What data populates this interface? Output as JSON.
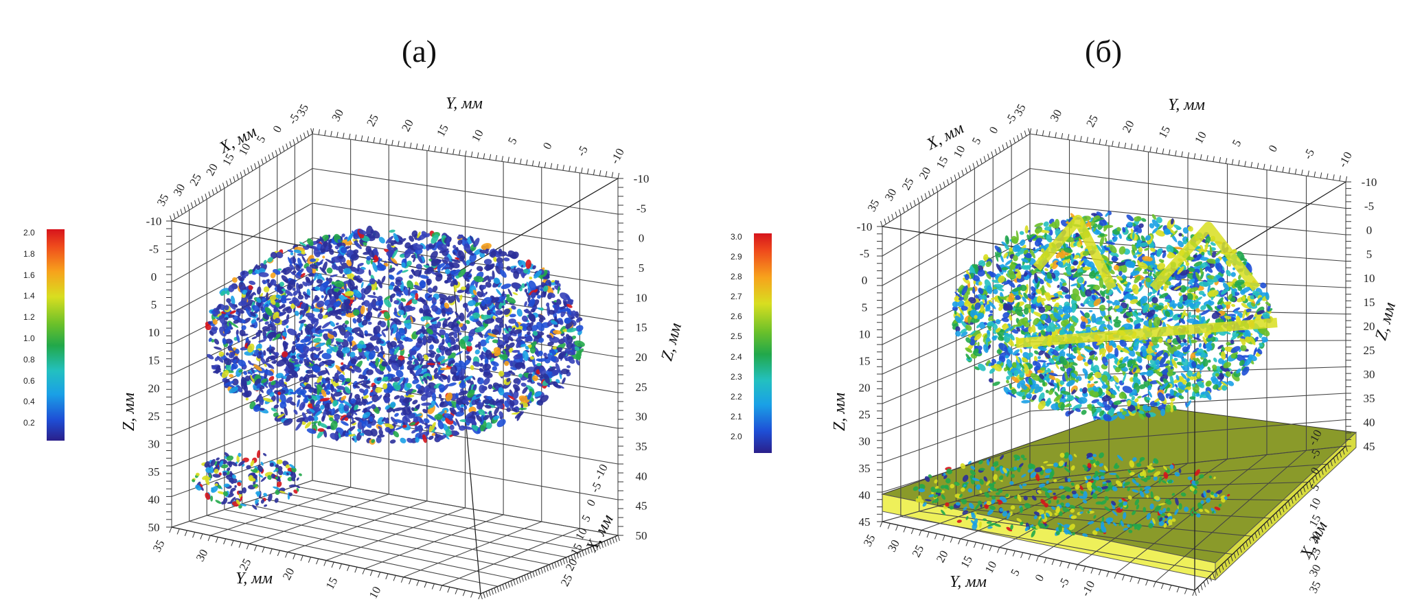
{
  "panels": [
    {
      "id": "a",
      "title": "(a)",
      "colorbar": {
        "ticks": [
          "2.0",
          "1.8",
          "1.6",
          "1.4",
          "1.2",
          "1.0",
          "0.8",
          "0.6",
          "0.4",
          "0.2"
        ],
        "colors": [
          "#2a1f8a",
          "#1aa0e6",
          "#22a84a",
          "#d8de20",
          "#d6141c"
        ]
      },
      "axes": {
        "x_label_top": "X, мм",
        "y_label_top": "Y, мм",
        "z_label_left": "Z, мм",
        "z_label_right": "Z, мм",
        "x_label_right": "X, мм",
        "y_label_bottom": "Y, мм",
        "x_ticks_top": [
          "35",
          "30",
          "25",
          "20",
          "15",
          "10",
          "5",
          "0",
          "-5"
        ],
        "y_ticks_top": [
          "35",
          "30",
          "25",
          "20",
          "15",
          "10",
          "5",
          "0",
          "-5",
          "-10"
        ],
        "z_ticks_left": [
          "-10",
          "-5",
          "0",
          "5",
          "10",
          "15",
          "20",
          "25",
          "30",
          "35",
          "40",
          "50"
        ],
        "z_ticks_right": [
          "-10",
          "-5",
          "0",
          "5",
          "10",
          "15",
          "20",
          "25",
          "30",
          "35",
          "40",
          "45",
          "50"
        ],
        "x_ticks_right": [
          "-10",
          "-5",
          "0",
          "5",
          "10",
          "15",
          "20",
          "25"
        ],
        "y_ticks_bottom": [
          "35",
          "30",
          "25",
          "20",
          "15",
          "10"
        ]
      }
    },
    {
      "id": "b",
      "title": "(б)",
      "colorbar": {
        "ticks": [
          "3.0",
          "2.9",
          "2.8",
          "2.7",
          "2.6",
          "2.5",
          "2.4",
          "2.3",
          "2.2",
          "2.1",
          "2.0"
        ],
        "colors": [
          "#2a1f8a",
          "#1aa0e6",
          "#22a84a",
          "#d8de20",
          "#d6141c"
        ]
      },
      "axes": {
        "x_label_top": "X, мм",
        "y_label_top": "Y, мм",
        "z_label_left": "Z, мм",
        "z_label_right": "Z, мм",
        "x_label_right": "X, мм",
        "y_label_bottom": "Y, мм",
        "x_ticks_top": [
          "35",
          "30",
          "25",
          "20",
          "15",
          "10",
          "5",
          "0",
          "-5"
        ],
        "y_ticks_top": [
          "35",
          "30",
          "25",
          "20",
          "15",
          "10",
          "5",
          "0",
          "-5",
          "-10"
        ],
        "z_ticks_left": [
          "-10",
          "-5",
          "0",
          "5",
          "10",
          "15",
          "20",
          "25",
          "30",
          "35",
          "40",
          "45"
        ],
        "z_ticks_right": [
          "-10",
          "-5",
          "0",
          "5",
          "10",
          "15",
          "20",
          "25",
          "30",
          "35",
          "40",
          "45"
        ],
        "x_ticks_right": [
          "-10",
          "-5",
          "0",
          "5",
          "10",
          "15",
          "20",
          "25",
          "30",
          "35"
        ],
        "y_ticks_bottom": [
          "35",
          "30",
          "25",
          "20",
          "15",
          "10",
          "5",
          "0",
          "-5",
          "-10"
        ]
      }
    }
  ]
}
